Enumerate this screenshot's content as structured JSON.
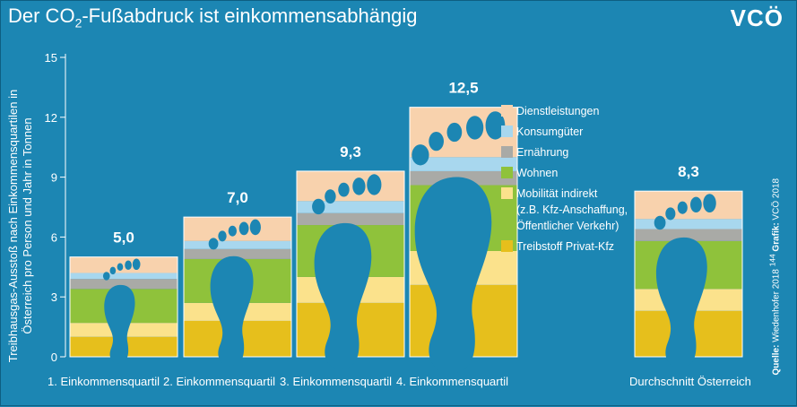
{
  "header": {
    "title_prefix": "Der CO",
    "title_sub": "2",
    "title_suffix": "-Fußabdruck ist einkommensabhängig",
    "logo": "VCÖ"
  },
  "y_axis_label": "Treibhausgas-Ausstoß nach Einkommensquartilen in Österreich pro Person und Jahr in Tonnen",
  "source": {
    "label": "Quelle:",
    "text": "Wiedenhofer 2018",
    "note": "144",
    "grafik_label": "Grafik:",
    "grafik_text": "VCÖ 2018"
  },
  "colors": {
    "background": "#1c86b3",
    "dienstleistungen": "#f8d2ad",
    "konsumgueter": "#a8d7ee",
    "ernaehrung": "#a9aaa6",
    "wohnen": "#8fc23b",
    "mobilitaet_indirekt": "#fbe28c",
    "treibstoff": "#e6bf1c",
    "footprint": "#1c86b3"
  },
  "chart_data": {
    "type": "bar",
    "stacked": true,
    "categories": [
      "1. Einkommensquartil",
      "2. Einkommensquartil",
      "3. Einkommensquartil",
      "4. Einkommensquartil",
      "Durchschnitt Österreich"
    ],
    "totals": [
      5.0,
      7.0,
      9.3,
      12.5,
      8.3
    ],
    "total_labels": [
      "5,0",
      "7,0",
      "9,3",
      "12,5",
      "8,3"
    ],
    "ylim": [
      0,
      15
    ],
    "yticks": [
      "0",
      "3",
      "6",
      "9",
      "12",
      "15"
    ],
    "grid": false,
    "legend_position": "right",
    "series": [
      {
        "name": "Treibstoff Privat-Kfz",
        "key": "treibstoff",
        "values": [
          1.0,
          1.8,
          2.7,
          3.6,
          2.3
        ]
      },
      {
        "name": "Mobilität indirekt",
        "name_lines": [
          "Mobilität indirekt",
          "(z.B. Kfz-Anschaffung,",
          "Öffentlicher Verkehr)"
        ],
        "key": "mobilitaet_indirekt",
        "values": [
          0.7,
          0.9,
          1.3,
          1.7,
          1.1
        ]
      },
      {
        "name": "Wohnen",
        "key": "wohnen",
        "values": [
          1.7,
          2.2,
          2.6,
          3.3,
          2.4
        ]
      },
      {
        "name": "Ernährung",
        "key": "ernaehrung",
        "values": [
          0.5,
          0.5,
          0.6,
          0.7,
          0.6
        ]
      },
      {
        "name": "Konsumgüter",
        "key": "konsumgueter",
        "values": [
          0.3,
          0.4,
          0.6,
          0.7,
          0.5
        ]
      },
      {
        "name": "Dienstleistungen",
        "key": "dienstleistungen",
        "values": [
          0.8,
          1.2,
          1.5,
          2.5,
          1.4
        ]
      }
    ]
  }
}
